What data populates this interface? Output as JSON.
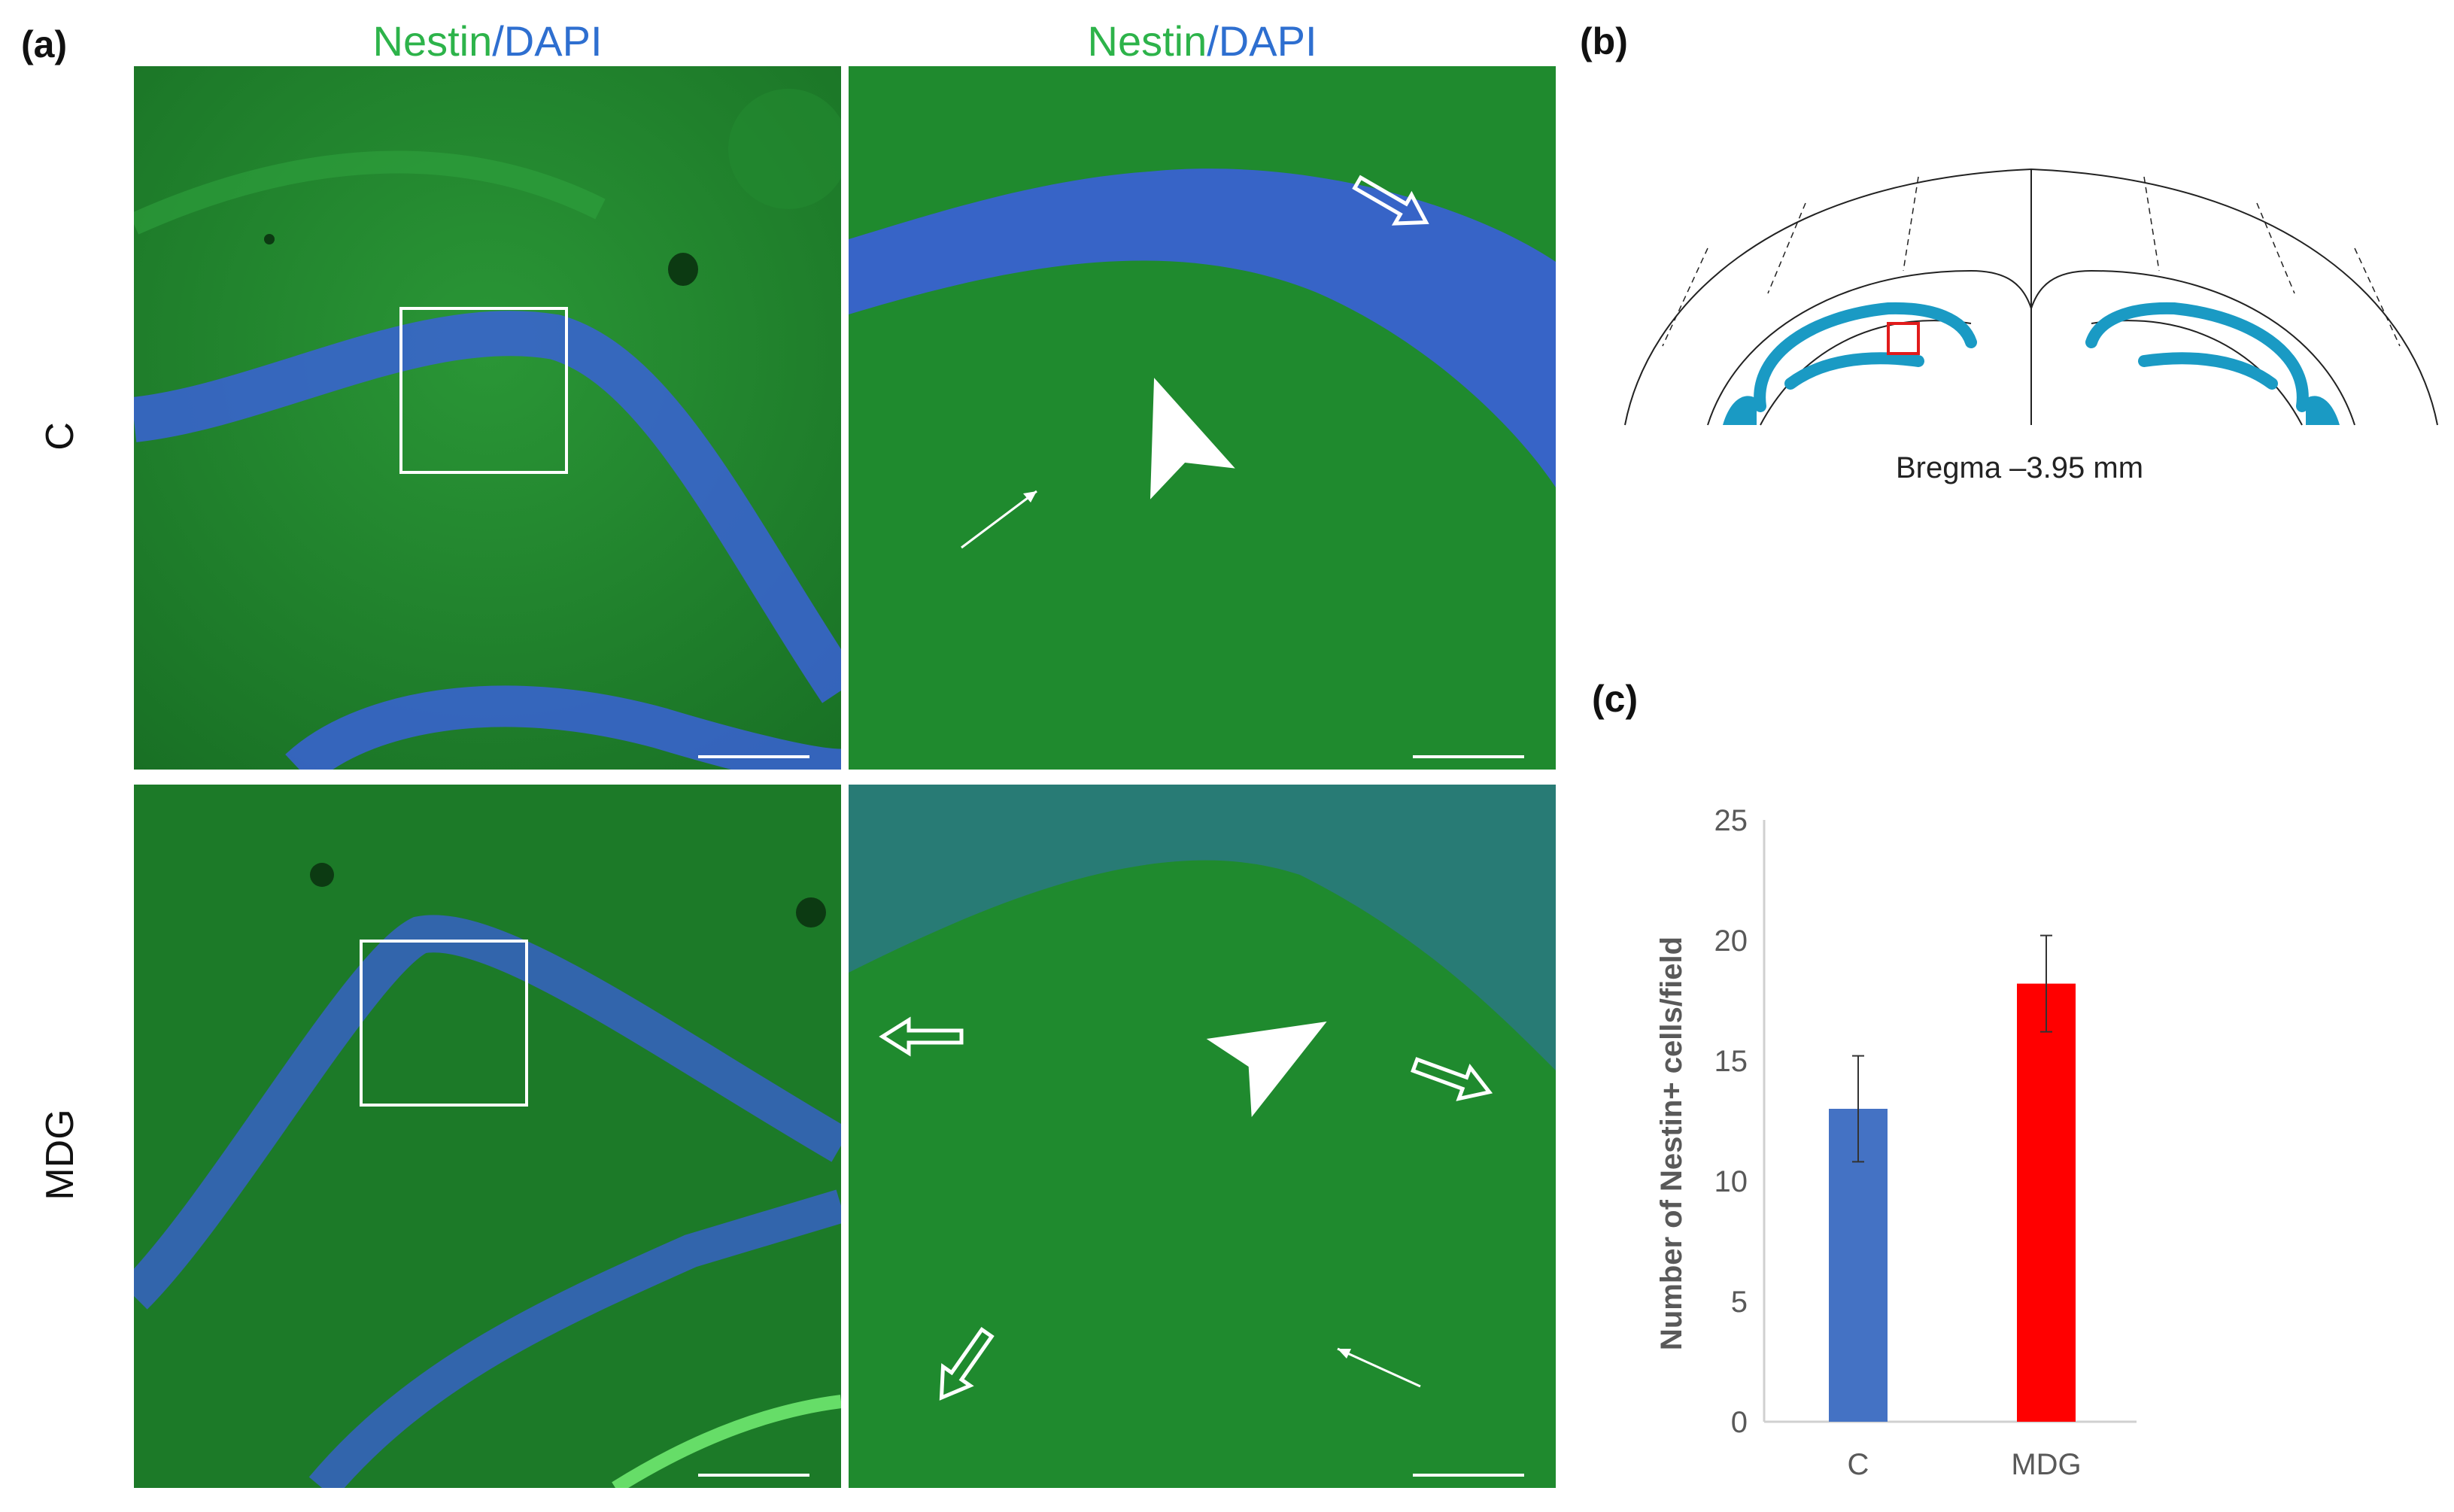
{
  "figure": {
    "panel_a_label": "(a)",
    "panel_b_label": "(b)",
    "panel_c_label": "(c)",
    "stain_title": {
      "marker": "Nestin",
      "separator": "/",
      "counterstain": "DAPI"
    },
    "rows": [
      "C",
      "MDG"
    ],
    "bregma_label": "Bregma –3.95 mm"
  },
  "colors": {
    "nestin": "#2db34a",
    "dapi": "#2e6fd0",
    "tissue_green": "#1f8a2e",
    "nuclei_blue": "#3a5fd8",
    "hippocampus_fill": "#1a9ac4",
    "roi_box": "#e11b1b"
  },
  "icons": {
    "hollow_arrow": "hollow-arrow-icon",
    "arrowhead": "arrowhead-icon",
    "thin_arrow": "thin-arrow-icon"
  },
  "chart_data": {
    "type": "bar",
    "categories": [
      "C",
      "MDG"
    ],
    "values": [
      13.0,
      18.2
    ],
    "error": [
      2.2,
      2.0
    ],
    "colors": [
      "#4472c4",
      "#ff0000"
    ],
    "ylabel": "Number of Nestin+ cells/field",
    "ylim": [
      0,
      25
    ],
    "yticks": [
      0,
      5,
      10,
      15,
      20,
      25
    ],
    "grid": false
  }
}
